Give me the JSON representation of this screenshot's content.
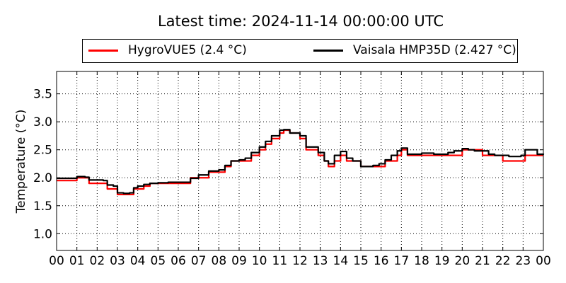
{
  "chart_data": {
    "type": "line",
    "title": "Latest time: 2024-11-14 00:00:00 UTC",
    "ylabel": "Temperature (°C)",
    "xlabel": "",
    "x_ticks": [
      "00",
      "01",
      "02",
      "03",
      "04",
      "05",
      "06",
      "07",
      "08",
      "09",
      "10",
      "11",
      "12",
      "13",
      "14",
      "15",
      "16",
      "17",
      "18",
      "19",
      "20",
      "21",
      "22",
      "23",
      "00"
    ],
    "y_ticks": [
      "1.0",
      "1.5",
      "2.0",
      "2.5",
      "3.0",
      "3.5"
    ],
    "xlim": [
      0,
      24
    ],
    "ylim": [
      0.7,
      3.9
    ],
    "grid": true,
    "legend_position": "top",
    "series": [
      {
        "name": "HygroVUE5 (2.4 °C)",
        "color": "#ff0000",
        "x": [
          0,
          0.5,
          1,
          1.4,
          1.6,
          2,
          2.3,
          2.5,
          2.8,
          3.0,
          3.3,
          3.6,
          3.8,
          4.0,
          4.3,
          4.6,
          5.0,
          5.5,
          6.0,
          6.3,
          6.6,
          7.0,
          7.5,
          8.0,
          8.3,
          8.6,
          9.0,
          9.3,
          9.6,
          10.0,
          10.3,
          10.6,
          11.0,
          11.2,
          11.5,
          11.8,
          12.0,
          12.3,
          12.6,
          12.9,
          13.2,
          13.4,
          13.7,
          14.0,
          14.3,
          14.6,
          15.0,
          15.3,
          15.6,
          15.9,
          16.2,
          16.5,
          16.8,
          17.0,
          17.3,
          17.6,
          18.0,
          18.3,
          18.6,
          19.0,
          19.3,
          19.6,
          20.0,
          20.3,
          20.6,
          21.0,
          21.3,
          21.6,
          22.0,
          22.3,
          22.6,
          22.9,
          23.1,
          23.4,
          23.7,
          24.0
        ],
        "y": [
          1.95,
          1.95,
          2.0,
          2.0,
          1.9,
          1.9,
          1.9,
          1.8,
          1.8,
          1.7,
          1.7,
          1.7,
          1.8,
          1.8,
          1.85,
          1.9,
          1.9,
          1.9,
          1.9,
          1.9,
          2.0,
          2.0,
          2.1,
          2.1,
          2.2,
          2.3,
          2.3,
          2.3,
          2.4,
          2.5,
          2.6,
          2.7,
          2.8,
          2.85,
          2.8,
          2.8,
          2.7,
          2.5,
          2.5,
          2.4,
          2.3,
          2.2,
          2.3,
          2.4,
          2.3,
          2.3,
          2.2,
          2.2,
          2.2,
          2.2,
          2.3,
          2.3,
          2.4,
          2.5,
          2.4,
          2.4,
          2.4,
          2.4,
          2.4,
          2.4,
          2.4,
          2.4,
          2.5,
          2.5,
          2.5,
          2.4,
          2.4,
          2.4,
          2.3,
          2.3,
          2.3,
          2.3,
          2.4,
          2.4,
          2.4,
          2.4
        ]
      },
      {
        "name": "Vaisala HMP35D (2.427 °C)",
        "color": "#000000",
        "x": [
          0,
          0.5,
          1,
          1.4,
          1.6,
          2,
          2.3,
          2.5,
          2.8,
          3.0,
          3.3,
          3.6,
          3.8,
          4.0,
          4.3,
          4.6,
          5.0,
          5.5,
          6.0,
          6.3,
          6.6,
          7.0,
          7.5,
          8.0,
          8.3,
          8.6,
          9.0,
          9.3,
          9.6,
          10.0,
          10.3,
          10.6,
          11.0,
          11.2,
          11.5,
          11.8,
          12.0,
          12.3,
          12.6,
          12.9,
          13.2,
          13.4,
          13.7,
          14.0,
          14.3,
          14.6,
          15.0,
          15.3,
          15.6,
          15.9,
          16.2,
          16.5,
          16.8,
          17.0,
          17.3,
          17.6,
          18.0,
          18.3,
          18.6,
          19.0,
          19.3,
          19.6,
          20.0,
          20.3,
          20.6,
          21.0,
          21.3,
          21.6,
          22.0,
          22.3,
          22.6,
          22.9,
          23.1,
          23.4,
          23.7,
          24.0
        ],
        "y": [
          1.99,
          1.99,
          2.02,
          2.01,
          1.96,
          1.96,
          1.95,
          1.87,
          1.85,
          1.73,
          1.72,
          1.73,
          1.82,
          1.85,
          1.88,
          1.9,
          1.91,
          1.92,
          1.92,
          1.92,
          1.99,
          2.05,
          2.12,
          2.14,
          2.22,
          2.3,
          2.32,
          2.35,
          2.45,
          2.55,
          2.65,
          2.75,
          2.85,
          2.86,
          2.8,
          2.8,
          2.75,
          2.55,
          2.55,
          2.45,
          2.3,
          2.25,
          2.4,
          2.47,
          2.35,
          2.3,
          2.2,
          2.2,
          2.22,
          2.25,
          2.32,
          2.4,
          2.48,
          2.53,
          2.42,
          2.42,
          2.44,
          2.44,
          2.42,
          2.42,
          2.45,
          2.48,
          2.52,
          2.5,
          2.48,
          2.48,
          2.42,
          2.4,
          2.4,
          2.38,
          2.38,
          2.4,
          2.5,
          2.5,
          2.42,
          2.43
        ]
      }
    ]
  }
}
